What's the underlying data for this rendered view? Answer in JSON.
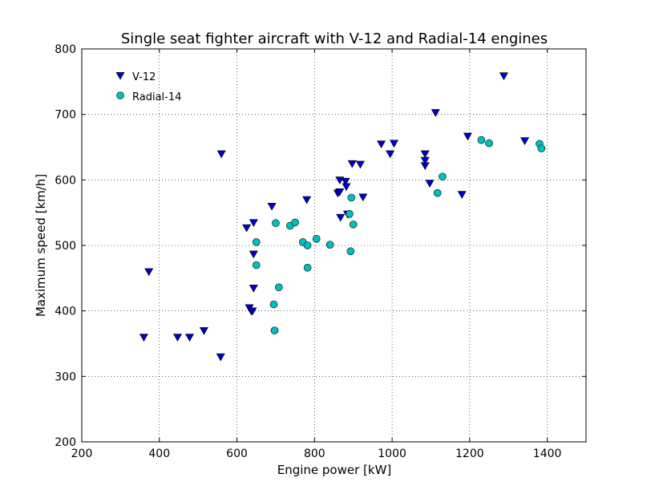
{
  "chart_data": {
    "type": "scatter",
    "title": "Single seat fighter aircraft with V-12 and Radial-14 engines",
    "xlabel": "Engine power [kW]",
    "ylabel": "Maximum speed [km/h]",
    "xlim": [
      200,
      1500
    ],
    "ylim": [
      200,
      800
    ],
    "x_ticks": [
      200,
      400,
      600,
      800,
      1000,
      1200,
      1400
    ],
    "y_ticks": [
      200,
      300,
      400,
      500,
      600,
      700,
      800
    ],
    "x_tick_labels": [
      "200",
      "400",
      "600",
      "800",
      "1000",
      "1200",
      "1400"
    ],
    "y_tick_labels": [
      "200",
      "300",
      "400",
      "500",
      "600",
      "700",
      "800"
    ],
    "grid": true,
    "legend_position": "top-left",
    "series": [
      {
        "name": "V-12",
        "marker": "triangle-down",
        "color": "#0000cc",
        "points": [
          [
            360,
            360
          ],
          [
            373,
            460
          ],
          [
            447,
            360
          ],
          [
            478,
            360
          ],
          [
            515,
            370
          ],
          [
            558,
            330
          ],
          [
            560,
            640
          ],
          [
            625,
            527
          ],
          [
            632,
            405
          ],
          [
            637,
            400
          ],
          [
            640,
            400
          ],
          [
            643,
            535
          ],
          [
            643,
            487
          ],
          [
            643,
            435
          ],
          [
            690,
            560
          ],
          [
            780,
            570
          ],
          [
            860,
            580
          ],
          [
            865,
            600
          ],
          [
            865,
            582
          ],
          [
            867,
            543
          ],
          [
            880,
            598
          ],
          [
            882,
            590
          ],
          [
            885,
            548
          ],
          [
            897,
            625
          ],
          [
            918,
            624
          ],
          [
            925,
            574
          ],
          [
            972,
            655
          ],
          [
            995,
            640
          ],
          [
            1005,
            656
          ],
          [
            1085,
            640
          ],
          [
            1085,
            630
          ],
          [
            1085,
            622
          ],
          [
            1097,
            595
          ],
          [
            1112,
            703
          ],
          [
            1180,
            578
          ],
          [
            1195,
            667
          ],
          [
            1288,
            759
          ],
          [
            1342,
            660
          ]
        ]
      },
      {
        "name": "Radial-14",
        "marker": "circle",
        "color": "#00bfbf",
        "points": [
          [
            650,
            505
          ],
          [
            650,
            470
          ],
          [
            695,
            410
          ],
          [
            697,
            370
          ],
          [
            700,
            534
          ],
          [
            708,
            436
          ],
          [
            737,
            530
          ],
          [
            750,
            535
          ],
          [
            770,
            505
          ],
          [
            782,
            500
          ],
          [
            782,
            466
          ],
          [
            805,
            510
          ],
          [
            840,
            501
          ],
          [
            890,
            548
          ],
          [
            893,
            491
          ],
          [
            895,
            573
          ],
          [
            900,
            532
          ],
          [
            1117,
            580
          ],
          [
            1130,
            605
          ],
          [
            1230,
            661
          ],
          [
            1250,
            656
          ],
          [
            1380,
            655
          ],
          [
            1385,
            648
          ]
        ]
      }
    ]
  }
}
